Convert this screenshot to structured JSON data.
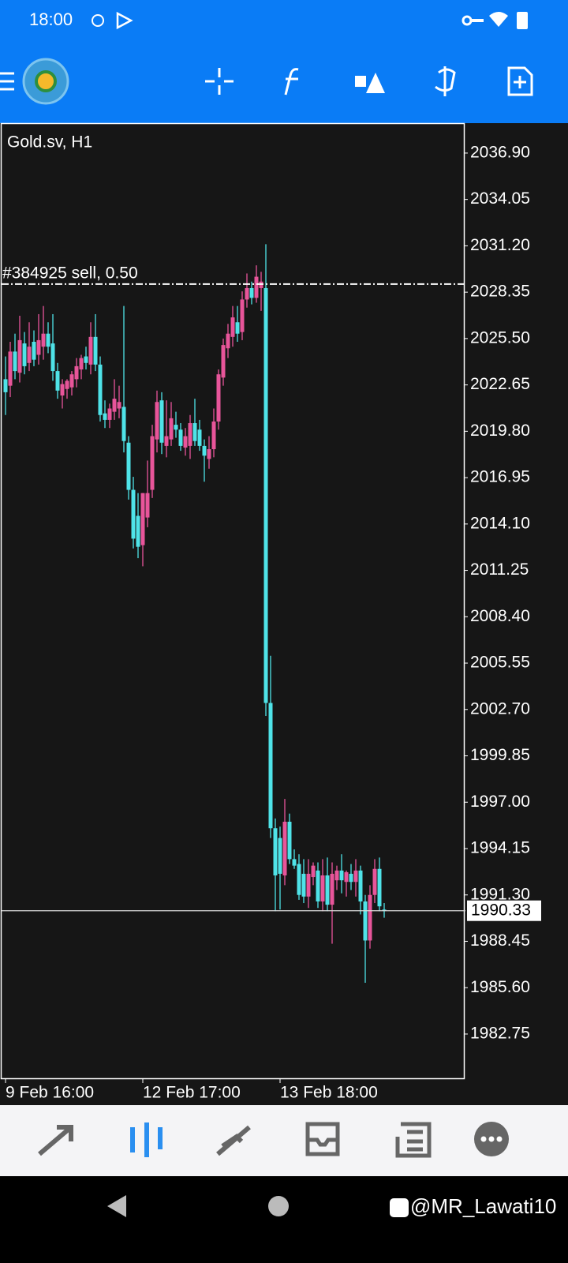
{
  "status_bar": {
    "time": "18:00"
  },
  "watermark": {
    "text": "@MR_Lawati10"
  },
  "chart_data": {
    "type": "candlestick",
    "title": "Gold.sv, H1",
    "categories": [
      "9 Feb 16:00",
      null,
      null,
      null,
      null,
      null,
      null,
      null,
      null,
      null,
      null,
      null,
      null,
      null,
      null,
      null,
      null,
      null,
      null,
      null,
      null,
      null,
      null,
      null,
      null,
      null,
      null,
      null,
      null,
      "12 Feb 17:00",
      null,
      null,
      null,
      null,
      null,
      null,
      null,
      null,
      null,
      null,
      null,
      null,
      null,
      null,
      null,
      null,
      null,
      null,
      null,
      null,
      null,
      null,
      null,
      null,
      null,
      null,
      null,
      null,
      "13 Feb 18:00",
      null,
      null,
      null,
      null,
      null,
      null,
      null,
      null,
      null,
      null,
      null,
      null,
      null,
      null,
      null,
      null,
      null,
      null,
      null,
      null,
      null,
      null
    ],
    "open": [
      2023.0,
      2022.6,
      2024.7,
      2023.4,
      2025.2,
      2024.0,
      2025.3,
      2024.5,
      2025.0,
      2025.8,
      2025.2,
      2023.5,
      2022.0,
      2022.4,
      2022.5,
      2023.0,
      2023.6,
      2024.4,
      2023.9,
      2025.6,
      2023.9,
      2020.9,
      2020.5,
      2021.0,
      2021.2,
      2021.3,
      2019.1,
      2016.2,
      2014.6,
      2012.8,
      2014.5,
      2016.2,
      2019.3,
      2021.7,
      2018.9,
      2019.3,
      2020.2,
      2019.9,
      2018.8,
      2018.9,
      2020.3,
      2019.9,
      2018.9,
      2018.1,
      2018.7,
      2020.4,
      2023.1,
      2024.9,
      2025.6,
      2026.5,
      2025.9,
      2027.9,
      2028.6,
      2028.0,
      2028.6,
      2028.6,
      2003.1,
      1995.4,
      1994.8,
      1992.5,
      1995.8,
      1993.5,
      1993.2,
      1992.6,
      1991.2,
      1992.4,
      1992.8,
      1990.9,
      1992.5,
      1990.7,
      1992.2,
      1992.8,
      1992.1,
      1992.6,
      1992.1,
      1992.8,
      1990.9,
      1988.5,
      1991.3,
      1992.9,
      1990.4
    ],
    "high": [
      2024.4,
      2025.3,
      2025.8,
      2026.9,
      2025.9,
      2026.5,
      2026.0,
      2027.0,
      2027.5,
      2026.5,
      2027.0,
      2024.0,
      2023.0,
      2023.0,
      2023.5,
      2024.3,
      2024.5,
      2025.0,
      2026.5,
      2027.0,
      2024.4,
      2021.7,
      2021.5,
      2023.0,
      2022.6,
      2027.5,
      2019.5,
      2017.0,
      2016.0,
      2016.0,
      2018.0,
      2020.2,
      2022.3,
      2022.2,
      2021.7,
      2021.6,
      2021.0,
      2020.3,
      2020.0,
      2020.8,
      2021.8,
      2020.5,
      2019.3,
      2019.5,
      2021.2,
      2023.6,
      2025.5,
      2026.4,
      2027.5,
      2027.5,
      2028.4,
      2029.5,
      2029.0,
      2030.0,
      2029.6,
      2031.3,
      2006.0,
      1996.0,
      1995.5,
      1997.2,
      1996.3,
      1994.1,
      1993.8,
      1993.5,
      1993.5,
      1993.3,
      1993.3,
      1993.5,
      1993.6,
      1993.3,
      1993.1,
      1993.8,
      1992.8,
      1993.2,
      1993.5,
      1993.1,
      1991.3,
      1991.9,
      1993.5,
      1993.6,
      1990.8
    ],
    "low": [
      2020.8,
      2021.9,
      2023.0,
      2022.8,
      2023.3,
      2023.5,
      2023.8,
      2023.9,
      2024.2,
      2024.6,
      2022.9,
      2021.8,
      2021.2,
      2021.8,
      2022.0,
      2022.5,
      2023.0,
      2023.6,
      2023.3,
      2023.5,
      2020.4,
      2020.0,
      2020.0,
      2020.5,
      2020.6,
      2018.5,
      2015.6,
      2012.6,
      2012.0,
      2011.5,
      2013.9,
      2015.7,
      2018.5,
      2018.4,
      2018.2,
      2018.9,
      2019.4,
      2018.6,
      2018.3,
      2018.1,
      2018.9,
      2018.6,
      2016.7,
      2017.5,
      2018.2,
      2019.9,
      2022.6,
      2024.3,
      2025.0,
      2025.3,
      2025.4,
      2027.4,
      2027.6,
      2027.7,
      2027.2,
      2002.3,
      1994.8,
      1990.3,
      1990.4,
      1991.9,
      1993.2,
      1992.9,
      1991.0,
      1990.8,
      1990.5,
      1991.9,
      1990.5,
      1990.3,
      1990.3,
      1988.3,
      1991.6,
      1991.4,
      1991.2,
      1991.6,
      1991.2,
      1990.1,
      1985.9,
      1988.0,
      1990.8,
      1990.3,
      1989.9
    ],
    "close": [
      2022.2,
      2024.7,
      2023.5,
      2025.4,
      2023.8,
      2025.0,
      2024.2,
      2025.4,
      2025.8,
      2025.0,
      2023.5,
      2022.3,
      2022.7,
      2022.9,
      2023.3,
      2023.8,
      2024.3,
      2024.0,
      2025.6,
      2023.9,
      2020.8,
      2020.5,
      2021.2,
      2021.8,
      2021.6,
      2019.2,
      2016.2,
      2013.2,
      2012.7,
      2016.0,
      2016.0,
      2019.5,
      2021.6,
      2019.1,
      2019.5,
      2020.6,
      2019.9,
      2018.9,
      2019.5,
      2020.3,
      2019.2,
      2018.9,
      2018.3,
      2018.7,
      2020.4,
      2023.3,
      2025.1,
      2025.8,
      2026.8,
      2025.8,
      2027.9,
      2028.6,
      2028.0,
      2029.3,
      2029.0,
      2003.1,
      1995.4,
      1992.5,
      1992.6,
      1995.8,
      1993.5,
      1993.1,
      1991.3,
      1991.2,
      1992.6,
      1993.1,
      1990.9,
      1992.5,
      1990.7,
      1992.6,
      1992.8,
      1992.2,
      1992.7,
      1992.1,
      1992.8,
      1990.9,
      1988.5,
      1991.3,
      1992.9,
      1990.6,
      1990.33
    ],
    "up_color": "#e8559a",
    "down_color": "#4fe3e8",
    "ylim": [
      1980.03,
      2038.74
    ],
    "yticks": [
      {
        "value": 2036.9,
        "label": "2036.90"
      },
      2034.05,
      {
        "value": 2031.2,
        "label": "2031.20"
      },
      2028.35,
      {
        "value": 2025.5,
        "label": "2025.50"
      },
      2022.65,
      {
        "value": 2019.8,
        "label": "2019.80"
      },
      2016.95,
      {
        "value": 2014.1,
        "label": "2014.10"
      },
      2011.25,
      {
        "value": 2008.4,
        "label": "2008.40"
      },
      2005.55,
      {
        "value": 2002.7,
        "label": "2002.70"
      },
      1999.85,
      {
        "value": 1997,
        "label": "1997.00"
      },
      1994.15,
      {
        "value": 1991.3,
        "label": "1991.30"
      },
      1988.45,
      {
        "value": 1985.6,
        "label": "1985.60"
      },
      1982.75
    ],
    "order_line": {
      "label": "#384925 sell, 0.50",
      "price": 2028.85
    },
    "current_price": 1990.33
  }
}
